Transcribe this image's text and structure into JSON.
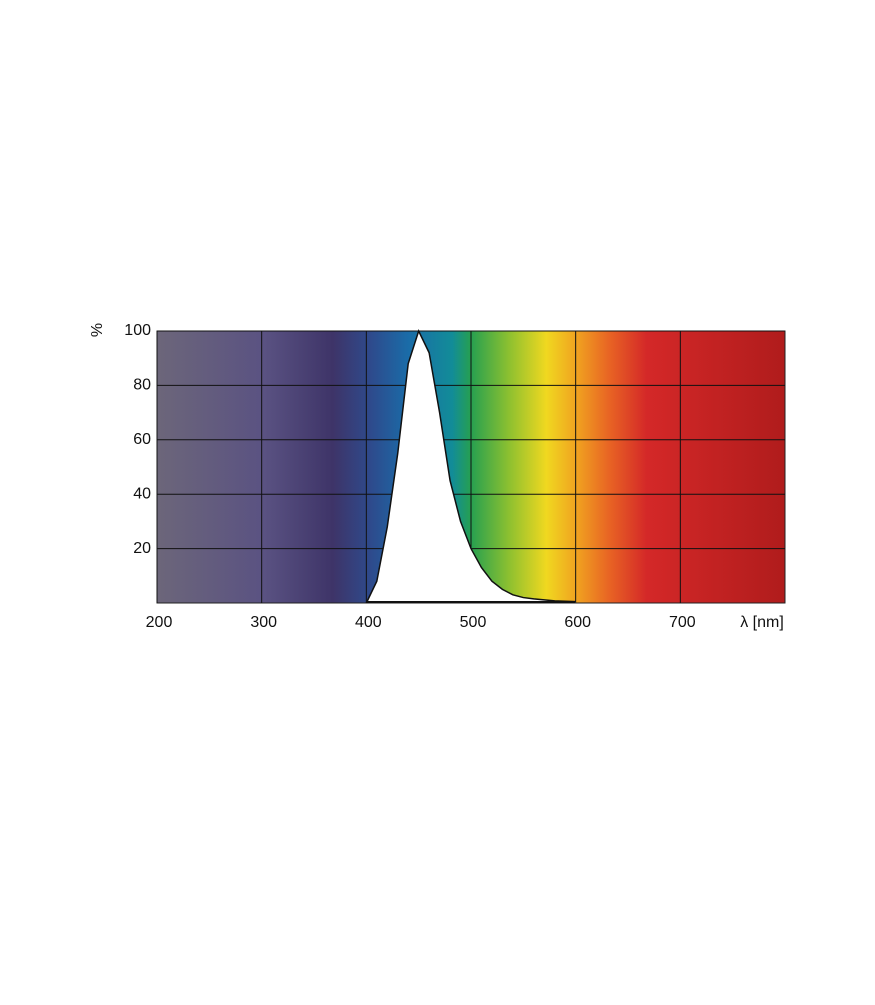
{
  "chart_data": {
    "type": "area",
    "ylabel": "%",
    "xlabel": "λ [nm]",
    "x": [
      400,
      410,
      420,
      430,
      440,
      450,
      460,
      470,
      480,
      490,
      500,
      510,
      520,
      530,
      540,
      550,
      560,
      580,
      600
    ],
    "values": [
      0,
      8,
      28,
      55,
      88,
      100,
      92,
      70,
      45,
      30,
      20,
      13,
      8,
      5,
      3,
      2,
      1.5,
      0.8,
      0.5
    ],
    "color": "#ffffff",
    "xlim": [
      200,
      800
    ],
    "xticks": [
      200,
      300,
      400,
      500,
      600,
      700
    ],
    "ylim": [
      0,
      100
    ],
    "yticks": [
      20,
      40,
      60,
      80,
      100
    ],
    "grid": true
  }
}
